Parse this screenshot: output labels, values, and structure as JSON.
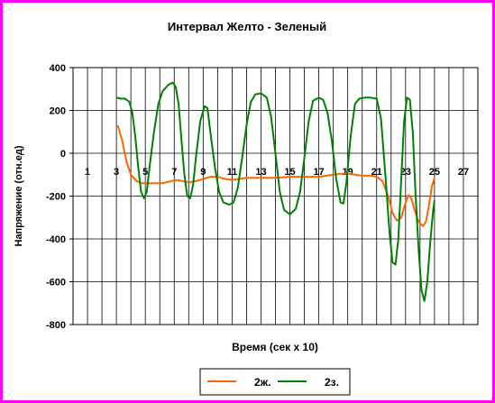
{
  "chart_data": {
    "type": "line",
    "title": "Интервал Желто - Зеленый",
    "xlabel": "Время (сек x 10)",
    "ylabel": "Напряжение (отн.ед)",
    "xlim": [
      0,
      28
    ],
    "ylim": [
      -800,
      400
    ],
    "yticks": [
      "400",
      "200",
      "0",
      "-200",
      "-400",
      "-600",
      "-800"
    ],
    "y_tick_values": [
      400,
      200,
      0,
      -200,
      -400,
      -600,
      -800
    ],
    "x_tick_labels": [
      "1",
      "3",
      "5",
      "7",
      "9",
      "11",
      "13",
      "15",
      "17",
      "19",
      "21",
      "23",
      "25",
      "27"
    ],
    "x_tick_values": [
      1,
      3,
      5,
      7,
      9,
      11,
      13,
      15,
      17,
      19,
      21,
      23,
      25,
      27
    ],
    "grid": true,
    "legend_position": "bottom",
    "series": [
      {
        "name": "2ж.",
        "color": "#ff6600",
        "points": [
          [
            3.1,
            130
          ],
          [
            3.4,
            60
          ],
          [
            3.7,
            -40
          ],
          [
            4.0,
            -100
          ],
          [
            4.4,
            -130
          ],
          [
            4.8,
            -140
          ],
          [
            5.5,
            -140
          ],
          [
            6.2,
            -140
          ],
          [
            6.8,
            -130
          ],
          [
            7.2,
            -125
          ],
          [
            7.6,
            -130
          ],
          [
            8.0,
            -135
          ],
          [
            8.5,
            -130
          ],
          [
            9.0,
            -120
          ],
          [
            9.5,
            -110
          ],
          [
            10.0,
            -110
          ],
          [
            10.5,
            -120
          ],
          [
            11.0,
            -125
          ],
          [
            11.5,
            -120
          ],
          [
            12.0,
            -115
          ],
          [
            13.0,
            -115
          ],
          [
            14.0,
            -115
          ],
          [
            15.0,
            -110
          ],
          [
            16.0,
            -110
          ],
          [
            17.0,
            -110
          ],
          [
            17.5,
            -105
          ],
          [
            18.0,
            -100
          ],
          [
            18.5,
            -95
          ],
          [
            19.0,
            -95
          ],
          [
            19.5,
            -100
          ],
          [
            20.0,
            -105
          ],
          [
            20.6,
            -105
          ],
          [
            21.0,
            -110
          ],
          [
            21.4,
            -130
          ],
          [
            21.8,
            -200
          ],
          [
            22.1,
            -280
          ],
          [
            22.4,
            -315
          ],
          [
            22.7,
            -300
          ],
          [
            23.0,
            -230
          ],
          [
            23.2,
            -195
          ],
          [
            23.4,
            -210
          ],
          [
            23.6,
            -260
          ],
          [
            23.9,
            -320
          ],
          [
            24.2,
            -340
          ],
          [
            24.4,
            -320
          ],
          [
            24.6,
            -250
          ],
          [
            24.8,
            -160
          ],
          [
            25.0,
            -115
          ]
        ]
      },
      {
        "name": "2з.",
        "color": "#008000",
        "points": [
          [
            3.0,
            260
          ],
          [
            3.3,
            255
          ],
          [
            3.6,
            255
          ],
          [
            3.9,
            240
          ],
          [
            4.1,
            190
          ],
          [
            4.3,
            80
          ],
          [
            4.5,
            -60
          ],
          [
            4.7,
            -180
          ],
          [
            4.9,
            -210
          ],
          [
            5.1,
            -180
          ],
          [
            5.3,
            -60
          ],
          [
            5.6,
            100
          ],
          [
            5.9,
            230
          ],
          [
            6.2,
            290
          ],
          [
            6.6,
            320
          ],
          [
            6.9,
            330
          ],
          [
            7.1,
            310
          ],
          [
            7.3,
            230
          ],
          [
            7.5,
            60
          ],
          [
            7.7,
            -100
          ],
          [
            7.9,
            -200
          ],
          [
            8.1,
            -210
          ],
          [
            8.3,
            -150
          ],
          [
            8.5,
            -20
          ],
          [
            8.8,
            150
          ],
          [
            9.1,
            220
          ],
          [
            9.3,
            210
          ],
          [
            9.5,
            100
          ],
          [
            9.8,
            -60
          ],
          [
            10.1,
            -180
          ],
          [
            10.4,
            -230
          ],
          [
            10.8,
            -240
          ],
          [
            11.1,
            -230
          ],
          [
            11.4,
            -160
          ],
          [
            11.7,
            -20
          ],
          [
            12.0,
            130
          ],
          [
            12.3,
            240
          ],
          [
            12.6,
            275
          ],
          [
            13.0,
            280
          ],
          [
            13.4,
            260
          ],
          [
            13.7,
            170
          ],
          [
            14.0,
            0
          ],
          [
            14.3,
            -180
          ],
          [
            14.6,
            -265
          ],
          [
            15.0,
            -285
          ],
          [
            15.4,
            -260
          ],
          [
            15.7,
            -180
          ],
          [
            16.0,
            -20
          ],
          [
            16.3,
            150
          ],
          [
            16.6,
            245
          ],
          [
            17.0,
            260
          ],
          [
            17.3,
            250
          ],
          [
            17.6,
            190
          ],
          [
            17.9,
            60
          ],
          [
            18.2,
            -120
          ],
          [
            18.5,
            -230
          ],
          [
            18.7,
            -235
          ],
          [
            18.9,
            -140
          ],
          [
            19.2,
            80
          ],
          [
            19.5,
            230
          ],
          [
            19.8,
            255
          ],
          [
            20.2,
            260
          ],
          [
            20.6,
            260
          ],
          [
            21.0,
            255
          ],
          [
            21.3,
            160
          ],
          [
            21.6,
            -100
          ],
          [
            21.9,
            -380
          ],
          [
            22.1,
            -510
          ],
          [
            22.3,
            -520
          ],
          [
            22.5,
            -400
          ],
          [
            22.7,
            -120
          ],
          [
            22.9,
            150
          ],
          [
            23.1,
            260
          ],
          [
            23.3,
            250
          ],
          [
            23.5,
            100
          ],
          [
            23.7,
            -200
          ],
          [
            23.9,
            -450
          ],
          [
            24.1,
            -640
          ],
          [
            24.3,
            -690
          ],
          [
            24.5,
            -600
          ],
          [
            24.7,
            -420
          ],
          [
            24.9,
            -270
          ],
          [
            25.0,
            -220
          ]
        ]
      }
    ]
  }
}
